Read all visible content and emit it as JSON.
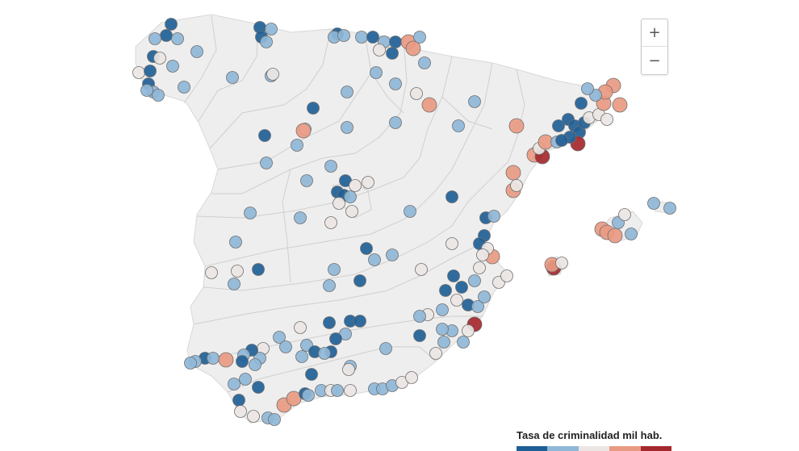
{
  "map": {
    "colors": {
      "land": "#eeeeee",
      "border": "#cfcfcf",
      "dark_blue": "#1f5f97",
      "light_blue": "#8fb7d8",
      "neutral": "#ebe6e4",
      "light_red": "#e99a82",
      "dark_red": "#a4282d"
    }
  },
  "zoom": {
    "in_label": "+",
    "out_label": "−",
    "in_icon": "plus-icon",
    "out_icon": "minus-icon"
  },
  "legend": {
    "title": "Tasa de criminalidad mil hab.",
    "scale_colors": [
      "#1f5f97",
      "#8fb7d8",
      "#ebe6e4",
      "#e99a82",
      "#a4282d"
    ]
  }
}
